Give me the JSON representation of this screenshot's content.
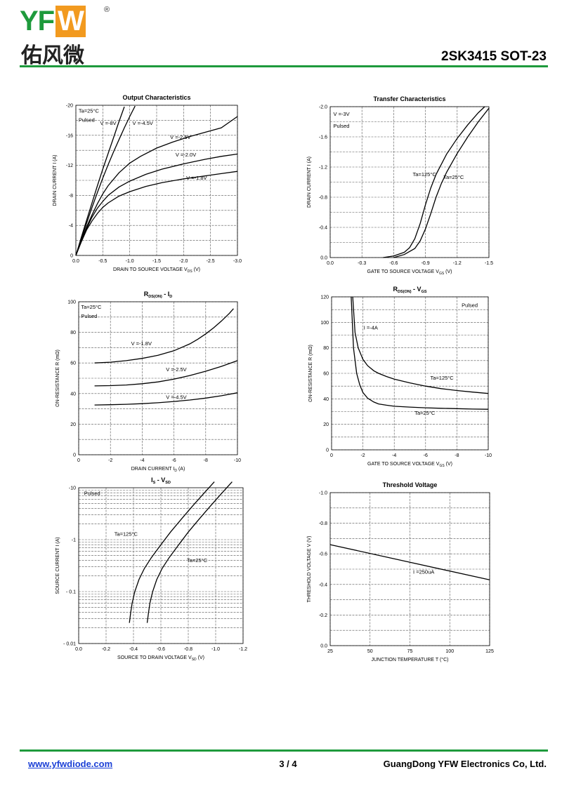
{
  "header": {
    "logo_text": "YFW",
    "logo_letters": [
      "YF",
      "W"
    ],
    "logo_reg": "®",
    "logo_cn": "佑风微",
    "part": "2SK3415   SOT-23",
    "brand_color": "#1e9a3c",
    "accent_color": "#f29a1f"
  },
  "footer": {
    "website": "www.yfwdiode.com",
    "page": "3 / 4",
    "company": "GuangDong YFW Electronics Co, Ltd."
  },
  "chart_data": [
    {
      "id": "output",
      "type": "line",
      "title": "Output Characteristics",
      "xlabel": "DRAIN TO SOURCE VOLTAGE V",
      "xlabel_sub": "DS",
      "xlabel_unit": " (V)",
      "ylabel": "DRAIN CURRENT I  (A)",
      "xlim": [
        0,
        -3.0
      ],
      "ylim": [
        0,
        -20
      ],
      "xticks": [
        0,
        -0.5,
        -1.0,
        -1.5,
        -2.0,
        -2.5,
        -3.0
      ],
      "xtick_labels": [
        "0.0",
        "-0.5",
        "-1.0",
        "-1.5",
        "-2.0",
        "-2.5",
        "-3.0"
      ],
      "yticks": [
        0,
        -4,
        -8,
        -12,
        -16,
        -20
      ],
      "ytick_labels": [
        "0",
        "-4",
        "-8",
        "-12",
        "-16",
        "-20"
      ],
      "grid": true,
      "annotations": [
        {
          "text": "Ta=25°C",
          "x": -0.05,
          "y": -19.0
        },
        {
          "text": "Pulsed",
          "x": -0.05,
          "y": -17.8
        },
        {
          "text": "V  =-8V",
          "x": -0.45,
          "y": -17.4
        },
        {
          "text": "V  =-4.5V",
          "x": -1.05,
          "y": -17.4
        },
        {
          "text": "V  =-2.5V",
          "x": -1.75,
          "y": -15.5
        },
        {
          "text": "V  =-2.0V",
          "x": -1.85,
          "y": -13.2
        },
        {
          "text": "V  =-1.8V",
          "x": -2.05,
          "y": -10.1
        }
      ],
      "series": [
        {
          "name": "V  =-8V",
          "x": [
            0,
            -0.1,
            -0.2,
            -0.3,
            -0.4,
            -0.5,
            -0.6,
            -0.7,
            -0.8,
            -0.9
          ],
          "y": [
            0,
            -2.4,
            -4.7,
            -7.0,
            -9.3,
            -11.5,
            -13.6,
            -15.7,
            -17.8,
            -19.8
          ]
        },
        {
          "name": "V  =-4.5V",
          "x": [
            0,
            -0.1,
            -0.2,
            -0.3,
            -0.4,
            -0.5,
            -0.6,
            -0.7,
            -0.8,
            -0.9,
            -1.0,
            -1.1
          ],
          "y": [
            0,
            -2.2,
            -4.3,
            -6.4,
            -8.4,
            -10.3,
            -12.1,
            -13.8,
            -15.4,
            -17.0,
            -18.5,
            -19.9
          ]
        },
        {
          "name": "V  =-2.5V",
          "x": [
            0,
            -0.1,
            -0.2,
            -0.3,
            -0.4,
            -0.5,
            -0.6,
            -0.8,
            -1.0,
            -1.2,
            -1.5,
            -1.8,
            -2.1,
            -2.4,
            -2.7,
            -3.0
          ],
          "y": [
            0,
            -2.0,
            -3.8,
            -5.4,
            -6.9,
            -8.2,
            -9.3,
            -11.0,
            -12.3,
            -13.2,
            -14.3,
            -15.1,
            -15.8,
            -16.4,
            -17.0,
            -18.5
          ]
        },
        {
          "name": "V  =-2.0V",
          "x": [
            0,
            -0.1,
            -0.2,
            -0.3,
            -0.4,
            -0.5,
            -0.6,
            -0.8,
            -1.0,
            -1.3,
            -1.6,
            -2.0,
            -2.4,
            -2.7,
            -3.0
          ],
          "y": [
            0,
            -1.9,
            -3.6,
            -5.1,
            -6.3,
            -7.2,
            -8.0,
            -9.1,
            -9.9,
            -10.8,
            -11.5,
            -12.2,
            -12.8,
            -13.2,
            -13.5
          ]
        },
        {
          "name": "V  =-1.8V",
          "x": [
            0,
            -0.1,
            -0.2,
            -0.3,
            -0.4,
            -0.5,
            -0.6,
            -0.8,
            -1.0,
            -1.3,
            -1.6,
            -2.0,
            -2.4,
            -2.7,
            -3.0
          ],
          "y": [
            0,
            -1.8,
            -3.4,
            -4.6,
            -5.6,
            -6.4,
            -7.0,
            -7.9,
            -8.5,
            -9.2,
            -9.7,
            -10.2,
            -10.6,
            -10.9,
            -11.2
          ]
        }
      ]
    },
    {
      "id": "transfer",
      "type": "line",
      "title": "Transfer Characteristics",
      "xlabel": "GATE TO SOURCE VOLTAGE V",
      "xlabel_sub": "GS",
      "xlabel_unit": " (V)",
      "ylabel": "DRAIN CURRENT I  (A)",
      "xlim": [
        0,
        -1.5
      ],
      "ylim": [
        0,
        -2.0
      ],
      "xticks": [
        0,
        -0.3,
        -0.6,
        -0.9,
        -1.2,
        -1.5
      ],
      "xtick_labels": [
        "0.0",
        "-0.3",
        "-0.6",
        "-0.9",
        "-1.2",
        "-1.5"
      ],
      "yticks": [
        0,
        -0.4,
        -0.8,
        -1.2,
        -1.6,
        -2.0
      ],
      "ytick_labels": [
        "0.0",
        "-0.4",
        "-0.8",
        "-1.2",
        "-1.6",
        "-2.0"
      ],
      "grid": true,
      "annotations": [
        {
          "text": "V  =-3V",
          "x": -0.03,
          "y": -1.88
        },
        {
          "text": "Pulsed",
          "x": -0.03,
          "y": -1.72
        },
        {
          "text": "Ta=125°C",
          "x": -0.78,
          "y": -1.08
        },
        {
          "text": "Ta=25°C",
          "x": -1.07,
          "y": -1.04
        }
      ],
      "series": [
        {
          "name": "Ta=125°C",
          "x": [
            -0.5,
            -0.6,
            -0.7,
            -0.75,
            -0.8,
            -0.85,
            -0.9,
            -0.95,
            -1.0,
            -1.1,
            -1.2,
            -1.3,
            -1.4,
            -1.46
          ],
          "y": [
            0,
            -0.02,
            -0.07,
            -0.13,
            -0.25,
            -0.45,
            -0.7,
            -0.92,
            -1.1,
            -1.37,
            -1.58,
            -1.76,
            -1.92,
            -2.0
          ]
        },
        {
          "name": "Ta=25°C",
          "x": [
            -0.6,
            -0.7,
            -0.8,
            -0.85,
            -0.9,
            -0.95,
            -1.0,
            -1.05,
            -1.1,
            -1.2,
            -1.3,
            -1.4,
            -1.5
          ],
          "y": [
            0,
            -0.04,
            -0.12,
            -0.22,
            -0.38,
            -0.58,
            -0.8,
            -0.98,
            -1.13,
            -1.38,
            -1.6,
            -1.8,
            -1.98
          ]
        }
      ]
    },
    {
      "id": "rds_id",
      "type": "line",
      "title": "R",
      "title_sub": "DS(ON)",
      "title_tail": " - I",
      "title_sub2": "D",
      "xlabel": "DRAIN CURRENT I",
      "xlabel_sub": "D",
      "xlabel_unit": " (A)",
      "ylabel": "ON-RESISTANCE R         (mΩ)",
      "xlim": [
        0,
        -10
      ],
      "ylim": [
        0,
        100
      ],
      "xticks": [
        0,
        -2,
        -4,
        -6,
        -8,
        -10
      ],
      "xtick_labels": [
        "0",
        "-2",
        "-4",
        "-6",
        "-8",
        "-10"
      ],
      "yticks": [
        0,
        20,
        40,
        60,
        80,
        100
      ],
      "ytick_labels": [
        "0",
        "20",
        "40",
        "60",
        "80",
        "100"
      ],
      "grid": true,
      "annotations": [
        {
          "text": "Ta=25°C",
          "x": -0.15,
          "y": 95.5
        },
        {
          "text": "Pulsed",
          "x": -0.15,
          "y": 89.5
        },
        {
          "text": "V  =-1.8V",
          "x": -3.3,
          "y": 71.5
        },
        {
          "text": "V  =-2.5V",
          "x": -5.5,
          "y": 54.5
        },
        {
          "text": "V  =-4.5V",
          "x": -5.5,
          "y": 36.5
        }
      ],
      "series": [
        {
          "name": "V  =-1.8V",
          "x": [
            -1,
            -2,
            -3,
            -4,
            -5,
            -6,
            -7,
            -7.5,
            -8,
            -8.5,
            -9,
            -9.5,
            -9.75
          ],
          "y": [
            60,
            60.5,
            61.5,
            63,
            65,
            68,
            72.5,
            75.5,
            79,
            83,
            87.5,
            92.5,
            95.5
          ]
        },
        {
          "name": "V  =-2.5V",
          "x": [
            -1,
            -2,
            -3,
            -4,
            -5,
            -6,
            -7,
            -8,
            -9,
            -10
          ],
          "y": [
            45,
            45.2,
            45.6,
            46.4,
            47.6,
            49.4,
            51.8,
            54.6,
            57.8,
            61.5
          ]
        },
        {
          "name": "V  =-4.5V",
          "x": [
            -1,
            -2,
            -3,
            -4,
            -5,
            -6,
            -7,
            -8,
            -9,
            -10
          ],
          "y": [
            32.5,
            32.7,
            33,
            33.4,
            34,
            34.8,
            35.8,
            37,
            38.6,
            40.5
          ]
        }
      ]
    },
    {
      "id": "rds_vgs",
      "type": "line",
      "title": "R",
      "title_sub": "DS(ON)",
      "title_tail": " - V",
      "title_sub2": "GS",
      "xlabel": "GATE TO SOURCE VOLTAGE V",
      "xlabel_sub": "GS",
      "xlabel_unit": " (V)",
      "ylabel": "ON-RESISTANCE R         (mΩ)",
      "xlim": [
        0,
        -10
      ],
      "ylim": [
        0,
        120
      ],
      "xticks": [
        0,
        -2,
        -4,
        -6,
        -8,
        -10
      ],
      "xtick_labels": [
        "0",
        "-2",
        "-4",
        "-6",
        "-8",
        "-10"
      ],
      "yticks": [
        0,
        20,
        40,
        60,
        80,
        100,
        120
      ],
      "ytick_labels": [
        "0",
        "20",
        "40",
        "60",
        "80",
        "100",
        "120"
      ],
      "grid": true,
      "annotations": [
        {
          "text": "Pulsed",
          "x": -8.3,
          "y": 112
        },
        {
          "text": "I  =-4A",
          "x": -2.05,
          "y": 94.5
        },
        {
          "text": "Ta=125°C",
          "x": -6.3,
          "y": 55
        },
        {
          "text": "Ta=25°C",
          "x": -5.3,
          "y": 27.5
        }
      ],
      "series": [
        {
          "name": "Ta=125°C",
          "x": [
            -1.35,
            -1.5,
            -1.7,
            -2.0,
            -2.3,
            -2.7,
            -3.0,
            -3.5,
            -4,
            -5,
            -6,
            -7,
            -8,
            -9,
            -10
          ],
          "y": [
            120,
            92,
            80,
            71,
            66,
            62,
            60,
            57.5,
            55.5,
            52.5,
            50,
            48,
            46.5,
            45.3,
            44.2
          ]
        },
        {
          "name": "Ta=25°C",
          "x": [
            -1.25,
            -1.4,
            -1.6,
            -1.8,
            -2.0,
            -2.3,
            -2.7,
            -3.0,
            -3.5,
            -4,
            -5,
            -6,
            -7,
            -8,
            -9,
            -10
          ],
          "y": [
            120,
            80,
            60,
            51,
            45,
            40.5,
            37.5,
            36,
            35,
            34.2,
            33.5,
            33,
            32.6,
            32.3,
            32,
            31.8
          ]
        }
      ]
    },
    {
      "id": "is_vsd",
      "type": "line",
      "title": "I",
      "title_sub": "S",
      "title_tail": " - V",
      "title_sub2": "SD",
      "xlabel": "SOURCE TO DRAIN VOLTAGE V",
      "xlabel_sub": "SD",
      "xlabel_unit": " (V)",
      "ylabel": "SOURCE CURRENT I  (A)",
      "log_y": true,
      "xlim": [
        0,
        -1.2
      ],
      "ylim": [
        -0.01,
        -10
      ],
      "xticks": [
        0,
        -0.2,
        -0.4,
        -0.6,
        -0.8,
        -1.0,
        -1.2
      ],
      "xtick_labels": [
        "0.0",
        "-0.2",
        "-0.4",
        "-0.6",
        "-0.8",
        "-1.0",
        "-1.2"
      ],
      "yticks": [
        -0.01,
        -0.1,
        -1,
        -10
      ],
      "ytick_labels": [
        "- 0.01",
        "- 0.1",
        "-1",
        "-10"
      ],
      "grid": true,
      "annotations": [
        {
          "text": "Pulsed",
          "x": -0.04,
          "y": -7.2
        },
        {
          "text": "Ta=125°C",
          "x": -0.26,
          "y": -1.18
        },
        {
          "text": "Ta=25°C",
          "x": -0.79,
          "y": -0.37
        }
      ],
      "series": [
        {
          "name": "Ta=125°C",
          "x": [
            -0.37,
            -0.38,
            -0.39,
            -0.41,
            -0.44,
            -0.48,
            -0.53,
            -0.6,
            -0.67,
            -0.75,
            -0.83,
            -0.91,
            -0.99
          ],
          "y": [
            -0.025,
            -0.04,
            -0.06,
            -0.1,
            -0.17,
            -0.28,
            -0.45,
            -0.8,
            -1.4,
            -2.5,
            -4.4,
            -7.6,
            -13.0
          ]
        },
        {
          "name": "Ta=25°C",
          "x": [
            -0.5,
            -0.51,
            -0.52,
            -0.54,
            -0.57,
            -0.61,
            -0.66,
            -0.73,
            -0.8,
            -0.88,
            -0.96,
            -1.04,
            -1.12
          ],
          "y": [
            -0.025,
            -0.04,
            -0.06,
            -0.1,
            -0.17,
            -0.28,
            -0.45,
            -0.8,
            -1.4,
            -2.5,
            -4.4,
            -7.6,
            -13.0
          ]
        }
      ]
    },
    {
      "id": "threshold",
      "type": "line",
      "title": "Threshold Voltage",
      "xlabel": "JUNCTION TEMPERATURE T (°C)",
      "ylabel": "THRESHOLD VOLTAGE V   (V)",
      "xlim": [
        25,
        125
      ],
      "ylim": [
        0,
        -1.0
      ],
      "xticks": [
        25,
        50,
        75,
        100,
        125
      ],
      "xtick_labels": [
        "25",
        "50",
        "75",
        "100",
        "125"
      ],
      "yticks": [
        0,
        -0.2,
        -0.4,
        -0.6,
        -0.8,
        -1.0
      ],
      "ytick_labels": [
        "0.0",
        "-0.2",
        "-0.4",
        "-0.6",
        "-0.8",
        "-1.0"
      ],
      "grid": true,
      "annotations": [
        {
          "text": "I =250uA",
          "x": 77,
          "y": -0.47
        }
      ],
      "series": [
        {
          "name": "I =250uA",
          "x": [
            25,
            125
          ],
          "y": [
            -0.66,
            -0.43
          ]
        }
      ]
    }
  ]
}
